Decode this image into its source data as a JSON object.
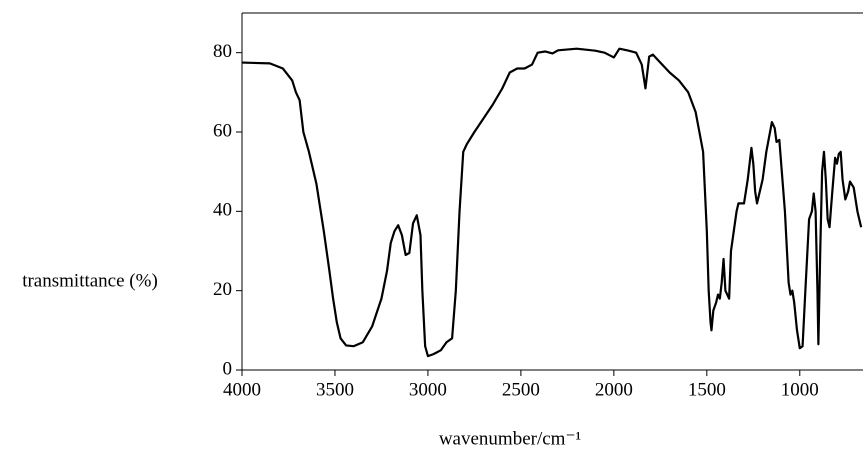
{
  "chart_data": {
    "type": "line",
    "x_label": "wavenumber/cm⁻¹",
    "y_label": "transmittance (%)",
    "color": "#000000",
    "xlim": [
      4000,
      660
    ],
    "ylim": [
      0,
      90
    ],
    "xticks": [
      4000,
      3500,
      3000,
      2500,
      2000,
      1500,
      1000
    ],
    "yticks": [
      0,
      20,
      40,
      60,
      80
    ],
    "x": [
      4000,
      3850,
      3780,
      3730,
      3710,
      3690,
      3670,
      3640,
      3600,
      3560,
      3530,
      3510,
      3490,
      3470,
      3440,
      3400,
      3350,
      3300,
      3250,
      3220,
      3200,
      3180,
      3160,
      3140,
      3120,
      3100,
      3080,
      3060,
      3040,
      3030,
      3015,
      3000,
      2970,
      2930,
      2900,
      2870,
      2850,
      2830,
      2810,
      2790,
      2750,
      2650,
      2600,
      2560,
      2520,
      2480,
      2440,
      2410,
      2370,
      2330,
      2300,
      2200,
      2100,
      2050,
      2000,
      1970,
      1920,
      1880,
      1850,
      1830,
      1810,
      1790,
      1760,
      1700,
      1650,
      1600,
      1560,
      1520,
      1500,
      1490,
      1480,
      1475,
      1465,
      1450,
      1440,
      1430,
      1420,
      1410,
      1400,
      1390,
      1380,
      1370,
      1340,
      1330,
      1300,
      1280,
      1260,
      1250,
      1240,
      1230,
      1200,
      1180,
      1160,
      1150,
      1135,
      1125,
      1110,
      1100,
      1080,
      1060,
      1050,
      1040,
      1030,
      1015,
      1000,
      985,
      970,
      950,
      935,
      925,
      915,
      905,
      900,
      890,
      880,
      870,
      860,
      850,
      840,
      825,
      810,
      800,
      790,
      780,
      770,
      755,
      740,
      730,
      710,
      700,
      690,
      670
    ],
    "values": [
      77.5,
      77.3,
      76,
      73,
      70,
      68,
      60,
      55,
      47,
      35,
      25,
      18,
      12,
      8,
      6.2,
      6,
      7,
      11,
      18,
      25,
      32,
      35,
      36.5,
      34,
      29,
      29.5,
      37,
      39,
      34,
      20,
      6,
      3.5,
      4,
      5,
      7,
      8,
      20,
      40,
      55,
      57,
      60,
      67,
      71,
      75,
      76,
      76,
      77,
      80,
      80.3,
      79.8,
      80.6,
      81,
      80.5,
      80,
      78.8,
      81,
      80.5,
      80,
      77,
      71,
      79,
      79.5,
      78,
      75,
      73,
      70,
      65,
      55,
      35,
      20,
      12,
      10,
      15,
      17,
      19,
      18,
      22,
      28,
      20,
      19,
      18,
      30,
      40,
      42,
      42,
      48,
      56,
      52,
      45,
      42,
      48,
      55,
      60,
      62.5,
      61,
      57.5,
      58,
      52,
      40,
      22,
      19,
      20,
      17,
      10,
      5.5,
      6,
      20,
      38,
      40,
      44.5,
      40,
      20,
      6.5,
      30,
      50,
      55,
      48,
      38,
      36,
      45,
      53.5,
      52,
      54.5,
      55,
      48,
      43,
      45,
      47.5,
      46,
      43,
      40,
      36
    ]
  }
}
